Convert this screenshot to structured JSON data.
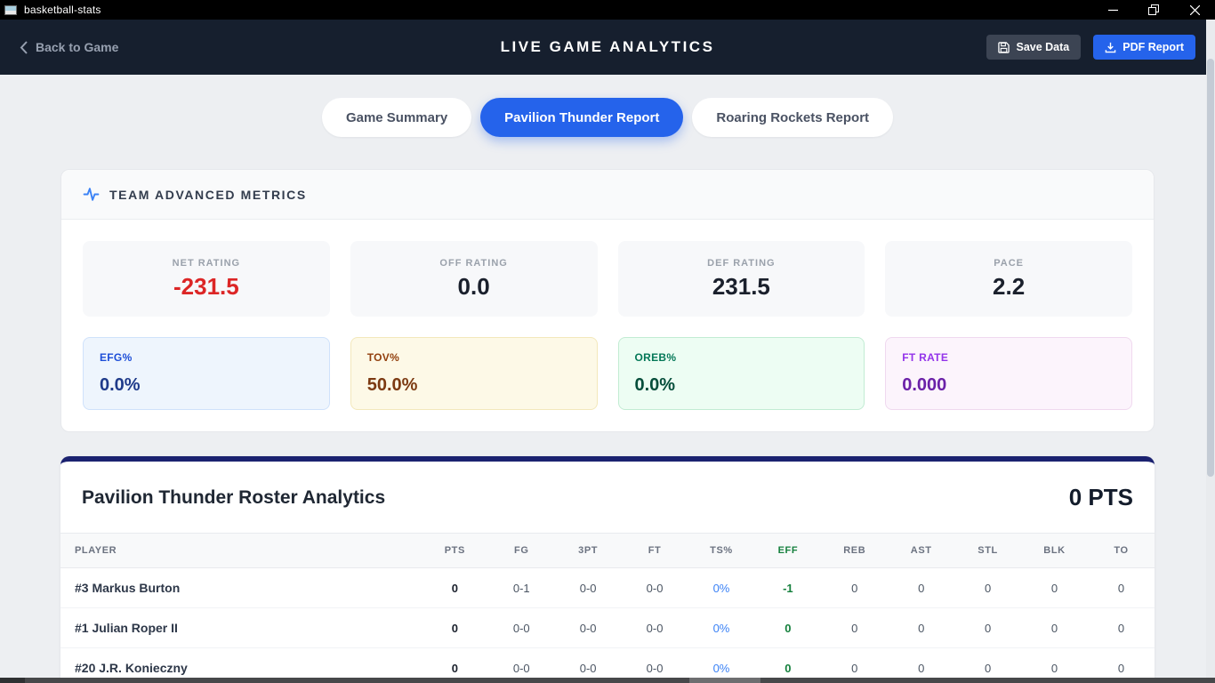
{
  "window": {
    "title": "basketball-stats"
  },
  "header": {
    "back_label": "Back to Game",
    "title": "LIVE GAME ANALYTICS",
    "save_label": "Save Data",
    "pdf_label": "PDF Report",
    "accent_color": "#2563eb",
    "background_color": "#161f2e"
  },
  "tabs": [
    {
      "label": "Game Summary",
      "active": false
    },
    {
      "label": "Pavilion Thunder Report",
      "active": true
    },
    {
      "label": "Roaring Rockets Report",
      "active": false
    }
  ],
  "metrics": {
    "section_title": "TEAM ADVANCED METRICS",
    "section_icon": "activity-icon",
    "primary": [
      {
        "label": "NET RATING",
        "value": "-231.5",
        "value_color": "#dc2626"
      },
      {
        "label": "OFF RATING",
        "value": "0.0",
        "value_color": "#1a202c"
      },
      {
        "label": "DEF RATING",
        "value": "231.5",
        "value_color": "#1a202c"
      },
      {
        "label": "PACE",
        "value": "2.2",
        "value_color": "#1a202c"
      }
    ],
    "secondary": [
      {
        "label": "EFG%",
        "value": "0.0%",
        "bg": "#eef5fd",
        "border": "#cfe2fb",
        "label_color": "#1d4ed8",
        "value_color": "#1e3a8a"
      },
      {
        "label": "TOV%",
        "value": "50.0%",
        "bg": "#fdf9e7",
        "border": "#f3e8bb",
        "label_color": "#92400e",
        "value_color": "#7c3a12"
      },
      {
        "label": "OREB%",
        "value": "0.0%",
        "bg": "#edfdf3",
        "border": "#c2ecd3",
        "label_color": "#047857",
        "value_color": "#064e3b"
      },
      {
        "label": "FT RATE",
        "value": "0.000",
        "bg": "#fcf4fc",
        "border": "#f0d9ef",
        "label_color": "#9333ea",
        "value_color": "#6b21a8"
      }
    ]
  },
  "roster": {
    "title": "Pavilion Thunder Roster Analytics",
    "total_points": "0 PTS",
    "columns": [
      {
        "key": "player",
        "label": "PLAYER"
      },
      {
        "key": "pts",
        "label": "PTS"
      },
      {
        "key": "fg",
        "label": "FG"
      },
      {
        "key": "p3",
        "label": "3PT"
      },
      {
        "key": "ft",
        "label": "FT"
      },
      {
        "key": "ts",
        "label": "TS%"
      },
      {
        "key": "eff",
        "label": "EFF"
      },
      {
        "key": "reb",
        "label": "REB"
      },
      {
        "key": "ast",
        "label": "AST"
      },
      {
        "key": "stl",
        "label": "STL"
      },
      {
        "key": "blk",
        "label": "BLK"
      },
      {
        "key": "to",
        "label": "TO"
      }
    ],
    "rows": [
      {
        "player": "#3 Markus Burton",
        "pts": "0",
        "fg": "0-1",
        "p3": "0-0",
        "ft": "0-0",
        "ts": "0%",
        "eff": "-1",
        "reb": "0",
        "ast": "0",
        "stl": "0",
        "blk": "0",
        "to": "0"
      },
      {
        "player": "#1 Julian Roper II",
        "pts": "0",
        "fg": "0-0",
        "p3": "0-0",
        "ft": "0-0",
        "ts": "0%",
        "eff": "0",
        "reb": "0",
        "ast": "0",
        "stl": "0",
        "blk": "0",
        "to": "0"
      },
      {
        "player": "#20 J.R. Konieczny",
        "pts": "0",
        "fg": "0-0",
        "p3": "0-0",
        "ft": "0-0",
        "ts": "0%",
        "eff": "0",
        "reb": "0",
        "ast": "0",
        "stl": "0",
        "blk": "0",
        "to": "0"
      }
    ],
    "status_colors": {
      "positive": "#15803d",
      "negative": "#dc2626",
      "ts_percent": "#3b82f6"
    }
  }
}
